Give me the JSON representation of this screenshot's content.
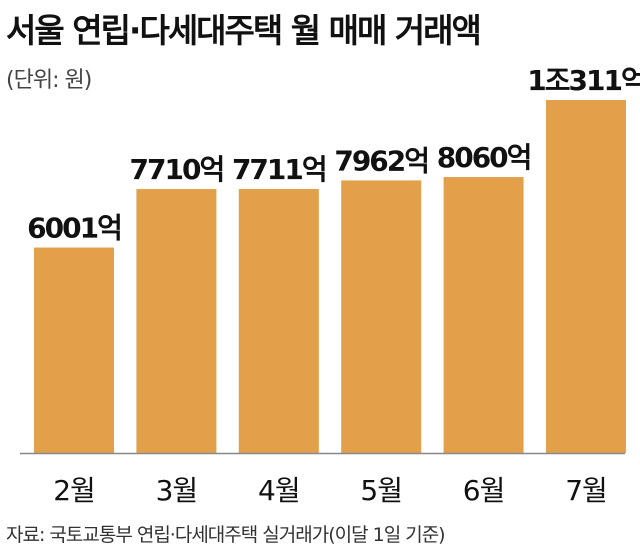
{
  "title": "서울 연립·다세대주택 월 매매 거래액",
  "unit_note": "(단위: 원)",
  "source_note": "자료: 국토교통부 연립·다세대주택 실거래가(이달 1일 기준)",
  "colors": {
    "bar": "#E3A04B",
    "axis": "#888888",
    "text": "#111111"
  },
  "chart_data": {
    "type": "bar",
    "title": "서울 연립·다세대주택 월 매매 거래액",
    "xlabel": "",
    "ylabel": "",
    "unit": "원",
    "categories": [
      "2월",
      "3월",
      "4월",
      "5월",
      "6월",
      "7월"
    ],
    "values": [
      600100000000,
      771000000000,
      771100000000,
      796200000000,
      806000000000,
      1031100000000
    ],
    "value_labels": [
      "6001억",
      "7710억",
      "7711억",
      "7962억",
      "8060억",
      "1조311억"
    ],
    "ylim": [
      0,
      1031100000000
    ],
    "grid": false,
    "legend": "none"
  }
}
